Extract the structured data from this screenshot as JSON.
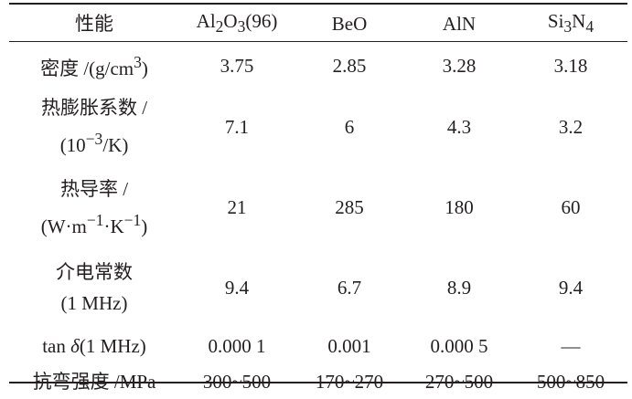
{
  "table": {
    "header": {
      "property": "性能",
      "al2o3": {
        "pre": "Al",
        "s1": "2",
        "mid": "O",
        "s2": "3",
        "post": "(96)"
      },
      "beo": "BeO",
      "aln": "AlN",
      "si3n4": {
        "pre": "Si",
        "s1": "3",
        "mid": "N",
        "s2": "4"
      }
    },
    "rows": [
      {
        "label": {
          "pre": "密度 /(g/cm",
          "sup": "3",
          "post": ")"
        },
        "values": [
          "3.75",
          "2.85",
          "3.28",
          "3.18"
        ]
      },
      {
        "label": {
          "line1": "热膨胀系数 /",
          "line2_pre": "(10",
          "line2_sup": "−3",
          "line2_post": "/K)"
        },
        "values": [
          "7.1",
          "6",
          "4.3",
          "3.2"
        ]
      },
      {
        "label": {
          "line1": "热导率 /",
          "l2a": "(W·m",
          "l2a_sup": "−1",
          "l2b": "·K",
          "l2b_sup": "−1",
          "l2c": ")"
        },
        "values": [
          "21",
          "285",
          "180",
          "60"
        ]
      },
      {
        "label": {
          "line1": "介电常数",
          "line2": "(1 MHz)"
        },
        "values": [
          "9.4",
          "6.7",
          "8.9",
          "9.4"
        ]
      },
      {
        "label": {
          "pre": "tan ",
          "delta": "δ",
          "post": "(1 MHz)"
        },
        "values": [
          "0.000 1",
          "0.001",
          "0.000 5",
          "—"
        ]
      },
      {
        "label": {
          "text": "抗弯强度 /MPa"
        },
        "values": [
          "300~500",
          "170~270",
          "270~500",
          "500~850"
        ]
      }
    ]
  }
}
